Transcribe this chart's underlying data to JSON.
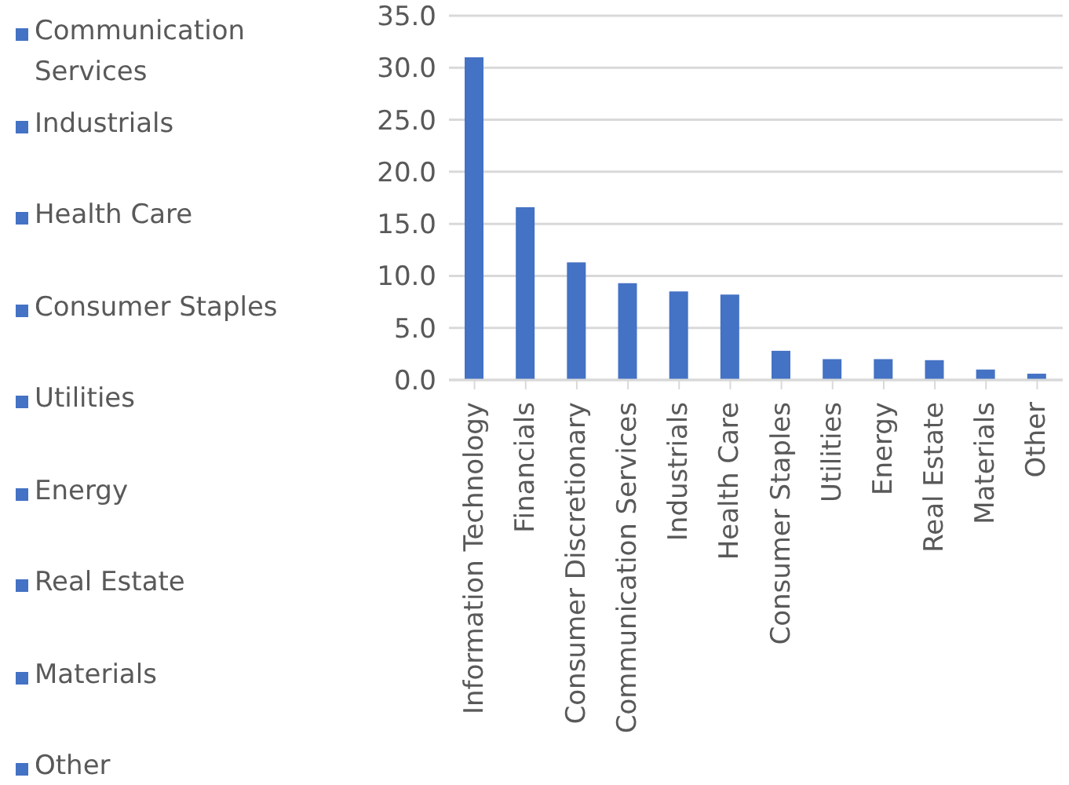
{
  "chart_data": {
    "type": "bar",
    "categories": [
      "Information Technology",
      "Financials",
      "Consumer Discretionary",
      "Communication Services",
      "Industrials",
      "Health Care",
      "Consumer Staples",
      "Utilities",
      "Energy",
      "Real Estate",
      "Materials",
      "Other"
    ],
    "stacked": true,
    "series": [
      {
        "color": "#4472c4",
        "values": [
          31.0,
          null,
          null,
          null,
          null,
          null,
          null,
          null,
          null,
          null,
          null,
          null
        ]
      },
      {
        "color": "#4472c4",
        "values": [
          null,
          16.6,
          null,
          null,
          null,
          null,
          null,
          null,
          null,
          null,
          null,
          null
        ]
      },
      {
        "color": "#4472c4",
        "values": [
          null,
          null,
          11.3,
          null,
          null,
          null,
          null,
          null,
          null,
          null,
          null,
          null
        ]
      },
      {
        "name": "Communication Services",
        "color": "#4472c4",
        "values": [
          null,
          null,
          null,
          9.3,
          null,
          null,
          null,
          null,
          null,
          null,
          null,
          null
        ]
      },
      {
        "name": "Industrials",
        "color": "#4472c4",
        "values": [
          null,
          null,
          null,
          null,
          8.5,
          null,
          null,
          null,
          null,
          null,
          null,
          null
        ]
      },
      {
        "name": "Health Care",
        "color": "#4472c4",
        "values": [
          null,
          null,
          null,
          null,
          null,
          8.2,
          null,
          null,
          null,
          null,
          null,
          null
        ]
      },
      {
        "name": "Consumer Staples",
        "color": "#4472c4",
        "values": [
          null,
          null,
          null,
          null,
          null,
          null,
          2.8,
          null,
          null,
          null,
          null,
          null
        ]
      },
      {
        "name": "Utilities",
        "color": "#4472c4",
        "values": [
          null,
          null,
          null,
          null,
          null,
          null,
          null,
          2.0,
          null,
          null,
          null,
          null
        ]
      },
      {
        "name": "Energy",
        "color": "#4472c4",
        "values": [
          null,
          null,
          null,
          null,
          null,
          null,
          null,
          null,
          2.0,
          null,
          null,
          null
        ]
      },
      {
        "name": "Real Estate",
        "color": "#4472c4",
        "values": [
          null,
          null,
          null,
          null,
          null,
          null,
          null,
          null,
          null,
          1.9,
          null,
          null
        ]
      },
      {
        "name": "Materials",
        "color": "#4472c4",
        "values": [
          null,
          null,
          null,
          null,
          null,
          null,
          null,
          null,
          null,
          null,
          1.0,
          null
        ]
      },
      {
        "name": "Other",
        "color": "#4472c4",
        "values": [
          null,
          null,
          null,
          null,
          null,
          null,
          null,
          null,
          null,
          null,
          null,
          0.6
        ]
      }
    ],
    "ylim": [
      0,
      35
    ],
    "yticks": [
      {
        "value": 0,
        "label": "0.0"
      },
      {
        "value": 5,
        "label": "5.0"
      },
      {
        "value": 10,
        "label": "10.0"
      },
      {
        "value": 15,
        "label": "15.0"
      },
      {
        "value": 20,
        "label": "20.0"
      },
      {
        "value": 25,
        "label": "25.0"
      },
      {
        "value": 30,
        "label": "30.0"
      },
      {
        "value": 35,
        "label": "35.0"
      }
    ],
    "grid": "y",
    "legend": "left"
  }
}
